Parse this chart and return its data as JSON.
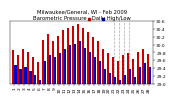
{
  "title": "Milwaukee/General, WI - Feb 2009",
  "subtitle": "Barometric Pressure - Daily High/Low",
  "background_color": "#ffffff",
  "bar_width": 0.42,
  "days": [
    1,
    2,
    3,
    4,
    5,
    6,
    7,
    8,
    9,
    10,
    11,
    12,
    13,
    14,
    15,
    16,
    17,
    18,
    19,
    20,
    21,
    22,
    23,
    24,
    25,
    26,
    27,
    28
  ],
  "high": [
    29.85,
    29.72,
    29.88,
    29.82,
    29.68,
    29.55,
    30.12,
    30.28,
    30.08,
    30.22,
    30.38,
    30.42,
    30.48,
    30.52,
    30.42,
    30.32,
    30.18,
    30.08,
    29.88,
    29.78,
    29.68,
    29.58,
    29.72,
    29.78,
    29.62,
    29.82,
    29.88,
    29.76
  ],
  "low": [
    29.48,
    29.38,
    29.42,
    29.32,
    29.22,
    29.08,
    29.58,
    29.72,
    29.68,
    29.78,
    29.88,
    29.98,
    30.02,
    30.08,
    29.92,
    29.82,
    29.68,
    29.58,
    29.38,
    29.28,
    29.18,
    29.08,
    29.22,
    29.38,
    29.18,
    29.42,
    29.52,
    29.42
  ],
  "high_color": "#cc0000",
  "low_color": "#0000cc",
  "ylim_min": 29.0,
  "ylim_max": 30.6,
  "ytick_values": [
    29.0,
    29.2,
    29.4,
    29.6,
    29.8,
    30.0,
    30.2,
    30.4,
    30.6
  ],
  "ytick_labels": [
    "29.0",
    "29.2",
    "29.4",
    "29.6",
    "29.8",
    "30.0",
    "30.2",
    "30.4",
    "30.6"
  ],
  "title_fontsize": 3.8,
  "tick_fontsize": 3.2,
  "dashed_line_days": [
    21,
    22,
    23,
    24
  ],
  "legend_high_label": "High",
  "legend_low_label": "Low"
}
